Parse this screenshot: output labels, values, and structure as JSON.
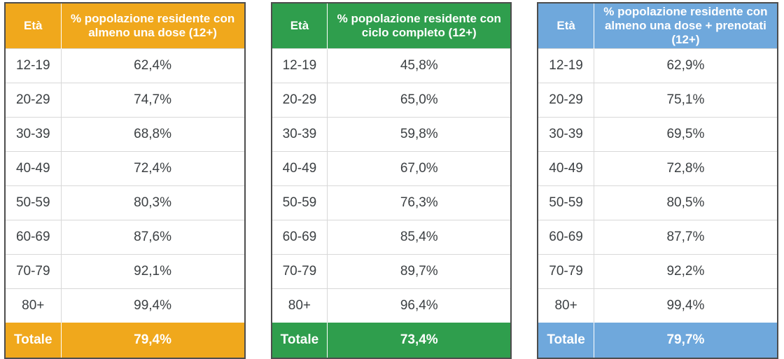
{
  "tables": [
    {
      "name": "almeno-una-dose",
      "accent_color": "#F0A81C",
      "header": {
        "age_label": "Età",
        "metric_label": "% popolazione residente con almeno una dose (12+)"
      },
      "rows": [
        {
          "age": "12-19",
          "value": "62,4%"
        },
        {
          "age": "20-29",
          "value": "74,7%"
        },
        {
          "age": "30-39",
          "value": "68,8%"
        },
        {
          "age": "40-49",
          "value": "72,4%"
        },
        {
          "age": "50-59",
          "value": "80,3%"
        },
        {
          "age": "60-69",
          "value": "87,6%"
        },
        {
          "age": "70-79",
          "value": "92,1%"
        },
        {
          "age": "80+",
          "value": "99,4%"
        }
      ],
      "total": {
        "label": "Totale",
        "value": "79,4%"
      }
    },
    {
      "name": "ciclo-completo",
      "accent_color": "#2F9E4D",
      "header": {
        "age_label": "Età",
        "metric_label": "% popolazione residente con ciclo completo (12+)"
      },
      "rows": [
        {
          "age": "12-19",
          "value": "45,8%"
        },
        {
          "age": "20-29",
          "value": "65,0%"
        },
        {
          "age": "30-39",
          "value": "59,8%"
        },
        {
          "age": "40-49",
          "value": "67,0%"
        },
        {
          "age": "50-59",
          "value": "76,3%"
        },
        {
          "age": "60-69",
          "value": "85,4%"
        },
        {
          "age": "70-79",
          "value": "89,7%"
        },
        {
          "age": "80+",
          "value": "96,4%"
        }
      ],
      "total": {
        "label": "Totale",
        "value": "73,4%"
      }
    },
    {
      "name": "almeno-una-dose-prenotati",
      "accent_color": "#6FA8DC",
      "header": {
        "age_label": "Età",
        "metric_label": "% popolazione residente con almeno una dose + prenotati (12+)"
      },
      "rows": [
        {
          "age": "12-19",
          "value": "62,9%"
        },
        {
          "age": "20-29",
          "value": "75,1%"
        },
        {
          "age": "30-39",
          "value": "69,5%"
        },
        {
          "age": "40-49",
          "value": "72,8%"
        },
        {
          "age": "50-59",
          "value": "80,5%"
        },
        {
          "age": "60-69",
          "value": "87,7%"
        },
        {
          "age": "70-79",
          "value": "92,2%"
        },
        {
          "age": "80+",
          "value": "99,4%"
        }
      ],
      "total": {
        "label": "Totale",
        "value": "79,7%"
      }
    }
  ],
  "chart_data": [
    {
      "type": "table",
      "title": "% popolazione residente con almeno una dose (12+)",
      "categories": [
        "12-19",
        "20-29",
        "30-39",
        "40-49",
        "50-59",
        "60-69",
        "70-79",
        "80+",
        "Totale"
      ],
      "values": [
        62.4,
        74.7,
        68.8,
        72.4,
        80.3,
        87.6,
        92.1,
        99.4,
        79.4
      ],
      "unit": "%",
      "accent": "#F0A81C"
    },
    {
      "type": "table",
      "title": "% popolazione residente con ciclo completo (12+)",
      "categories": [
        "12-19",
        "20-29",
        "30-39",
        "40-49",
        "50-59",
        "60-69",
        "70-79",
        "80+",
        "Totale"
      ],
      "values": [
        45.8,
        65.0,
        59.8,
        67.0,
        76.3,
        85.4,
        89.7,
        96.4,
        73.4
      ],
      "unit": "%",
      "accent": "#2F9E4D"
    },
    {
      "type": "table",
      "title": "% popolazione residente con almeno una dose + prenotati (12+)",
      "categories": [
        "12-19",
        "20-29",
        "30-39",
        "40-49",
        "50-59",
        "60-69",
        "70-79",
        "80+",
        "Totale"
      ],
      "values": [
        62.9,
        75.1,
        69.5,
        72.8,
        80.5,
        87.7,
        92.2,
        99.4,
        79.7
      ],
      "unit": "%",
      "accent": "#6FA8DC"
    }
  ]
}
